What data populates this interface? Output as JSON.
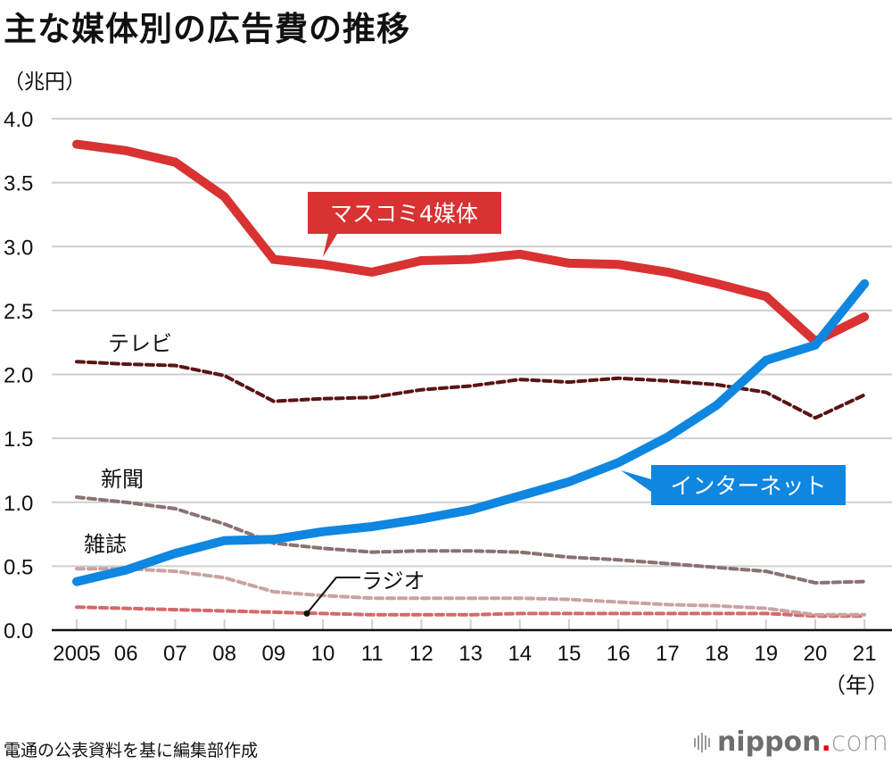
{
  "header": {
    "title": "主な媒体別の広告費の推移",
    "unit": "（兆円）"
  },
  "footer": {
    "source": "電通の公表資料を基に編集部作成",
    "logo_name": "nippon",
    "logo_dot": ".",
    "logo_tld": "com",
    "logo_icon": "sound-bars-icon"
  },
  "chart_data": {
    "type": "line",
    "title": "主な媒体別の広告費の推移",
    "ylabel": "（兆円）",
    "xlabel": "（年）",
    "ylim": [
      0,
      4.0
    ],
    "yticks": [
      "0.0",
      "0.5",
      "1.0",
      "1.5",
      "2.0",
      "2.5",
      "3.0",
      "3.5",
      "4.0"
    ],
    "ytick_values": [
      0,
      0.5,
      1.0,
      1.5,
      2.0,
      2.5,
      3.0,
      3.5,
      4.0
    ],
    "x": [
      2005,
      2006,
      2007,
      2008,
      2009,
      2010,
      2011,
      2012,
      2013,
      2014,
      2015,
      2016,
      2017,
      2018,
      2019,
      2020,
      2021
    ],
    "xtick_labels": [
      "2005",
      "06",
      "07",
      "08",
      "09",
      "10",
      "11",
      "12",
      "13",
      "14",
      "15",
      "16",
      "17",
      "18",
      "19",
      "20",
      "21"
    ],
    "x_unit_label": "（年）",
    "grid": true,
    "series": [
      {
        "key": "massmedia",
        "name": "マスコミ4媒体",
        "color": "#d83232",
        "style": "solid",
        "label_style": "callout",
        "values": [
          3.8,
          3.75,
          3.66,
          3.39,
          2.9,
          2.86,
          2.8,
          2.89,
          2.9,
          2.94,
          2.87,
          2.86,
          2.8,
          2.71,
          2.61,
          2.26,
          2.45
        ]
      },
      {
        "key": "tv",
        "name": "テレビ",
        "color": "#5a1414",
        "style": "dashed",
        "label_style": "text",
        "values": [
          2.1,
          2.08,
          2.07,
          1.99,
          1.79,
          1.81,
          1.82,
          1.88,
          1.91,
          1.96,
          1.94,
          1.97,
          1.95,
          1.92,
          1.86,
          1.66,
          1.84
        ]
      },
      {
        "key": "newspaper",
        "name": "新聞",
        "color": "#8a7272",
        "style": "dashed",
        "label_style": "text",
        "values": [
          1.04,
          1.0,
          0.95,
          0.83,
          0.68,
          0.64,
          0.61,
          0.62,
          0.62,
          0.61,
          0.57,
          0.55,
          0.52,
          0.49,
          0.46,
          0.37,
          0.38
        ]
      },
      {
        "key": "magazine",
        "name": "雑誌",
        "color": "#c9a3a3",
        "style": "dashed",
        "label_style": "text",
        "values": [
          0.48,
          0.48,
          0.46,
          0.41,
          0.3,
          0.27,
          0.25,
          0.25,
          0.25,
          0.25,
          0.24,
          0.22,
          0.2,
          0.19,
          0.17,
          0.12,
          0.12
        ]
      },
      {
        "key": "radio",
        "name": "ラジオ",
        "color": "#d46a6a",
        "style": "dashed",
        "label_style": "leader",
        "values": [
          0.18,
          0.17,
          0.16,
          0.15,
          0.14,
          0.13,
          0.12,
          0.12,
          0.12,
          0.13,
          0.13,
          0.13,
          0.13,
          0.13,
          0.13,
          0.11,
          0.11
        ]
      },
      {
        "key": "internet",
        "name": "インターネット",
        "color": "#0f86e0",
        "style": "solid",
        "label_style": "callout",
        "values": [
          0.38,
          0.47,
          0.6,
          0.7,
          0.71,
          0.77,
          0.81,
          0.87,
          0.94,
          1.05,
          1.16,
          1.31,
          1.51,
          1.76,
          2.11,
          2.23,
          2.71
        ]
      }
    ]
  }
}
